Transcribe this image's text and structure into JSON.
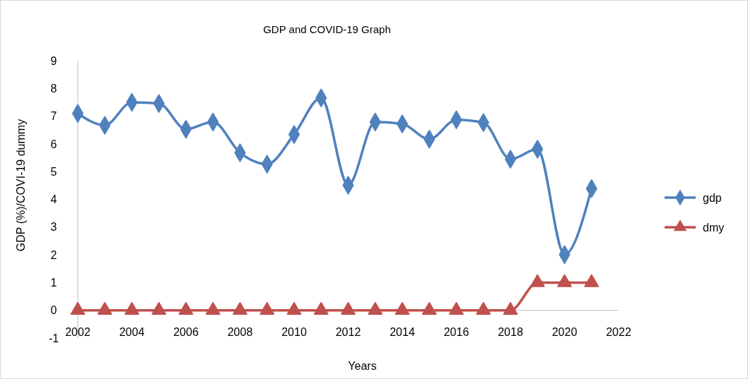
{
  "chart_data": {
    "type": "line",
    "title": "GDP and COVID-19 Graph",
    "xlabel": "Years",
    "ylabel": "GDP (%)/COVI-19 dummy",
    "x": [
      2002,
      2003,
      2004,
      2005,
      2006,
      2007,
      2008,
      2009,
      2010,
      2011,
      2012,
      2013,
      2014,
      2015,
      2016,
      2017,
      2018,
      2019,
      2020,
      2021
    ],
    "series": [
      {
        "name": "gdp",
        "color": "#4f81bd",
        "marker": "diamond",
        "values": [
          7.1,
          6.67,
          7.5,
          7.46,
          6.53,
          6.79,
          5.68,
          5.27,
          6.34,
          7.66,
          4.51,
          6.79,
          6.72,
          6.17,
          6.87,
          6.77,
          5.45,
          5.81,
          2.01,
          4.39
        ]
      },
      {
        "name": "dmy",
        "color": "#c0504d",
        "marker": "triangle",
        "values": [
          0,
          0,
          0,
          0,
          0,
          0,
          0,
          0,
          0,
          0,
          0,
          0,
          0,
          0,
          0,
          0,
          0,
          1,
          1,
          1
        ]
      }
    ],
    "xlim": [
      2002,
      2022
    ],
    "xticks": [
      2002,
      2004,
      2006,
      2008,
      2010,
      2012,
      2014,
      2016,
      2018,
      2020,
      2022
    ],
    "ylim": [
      -1,
      9
    ],
    "yticks": [
      -1,
      0,
      1,
      2,
      3,
      4,
      5,
      6,
      7,
      8,
      9
    ],
    "grid": false,
    "legend": "right",
    "line_style": "solid"
  }
}
